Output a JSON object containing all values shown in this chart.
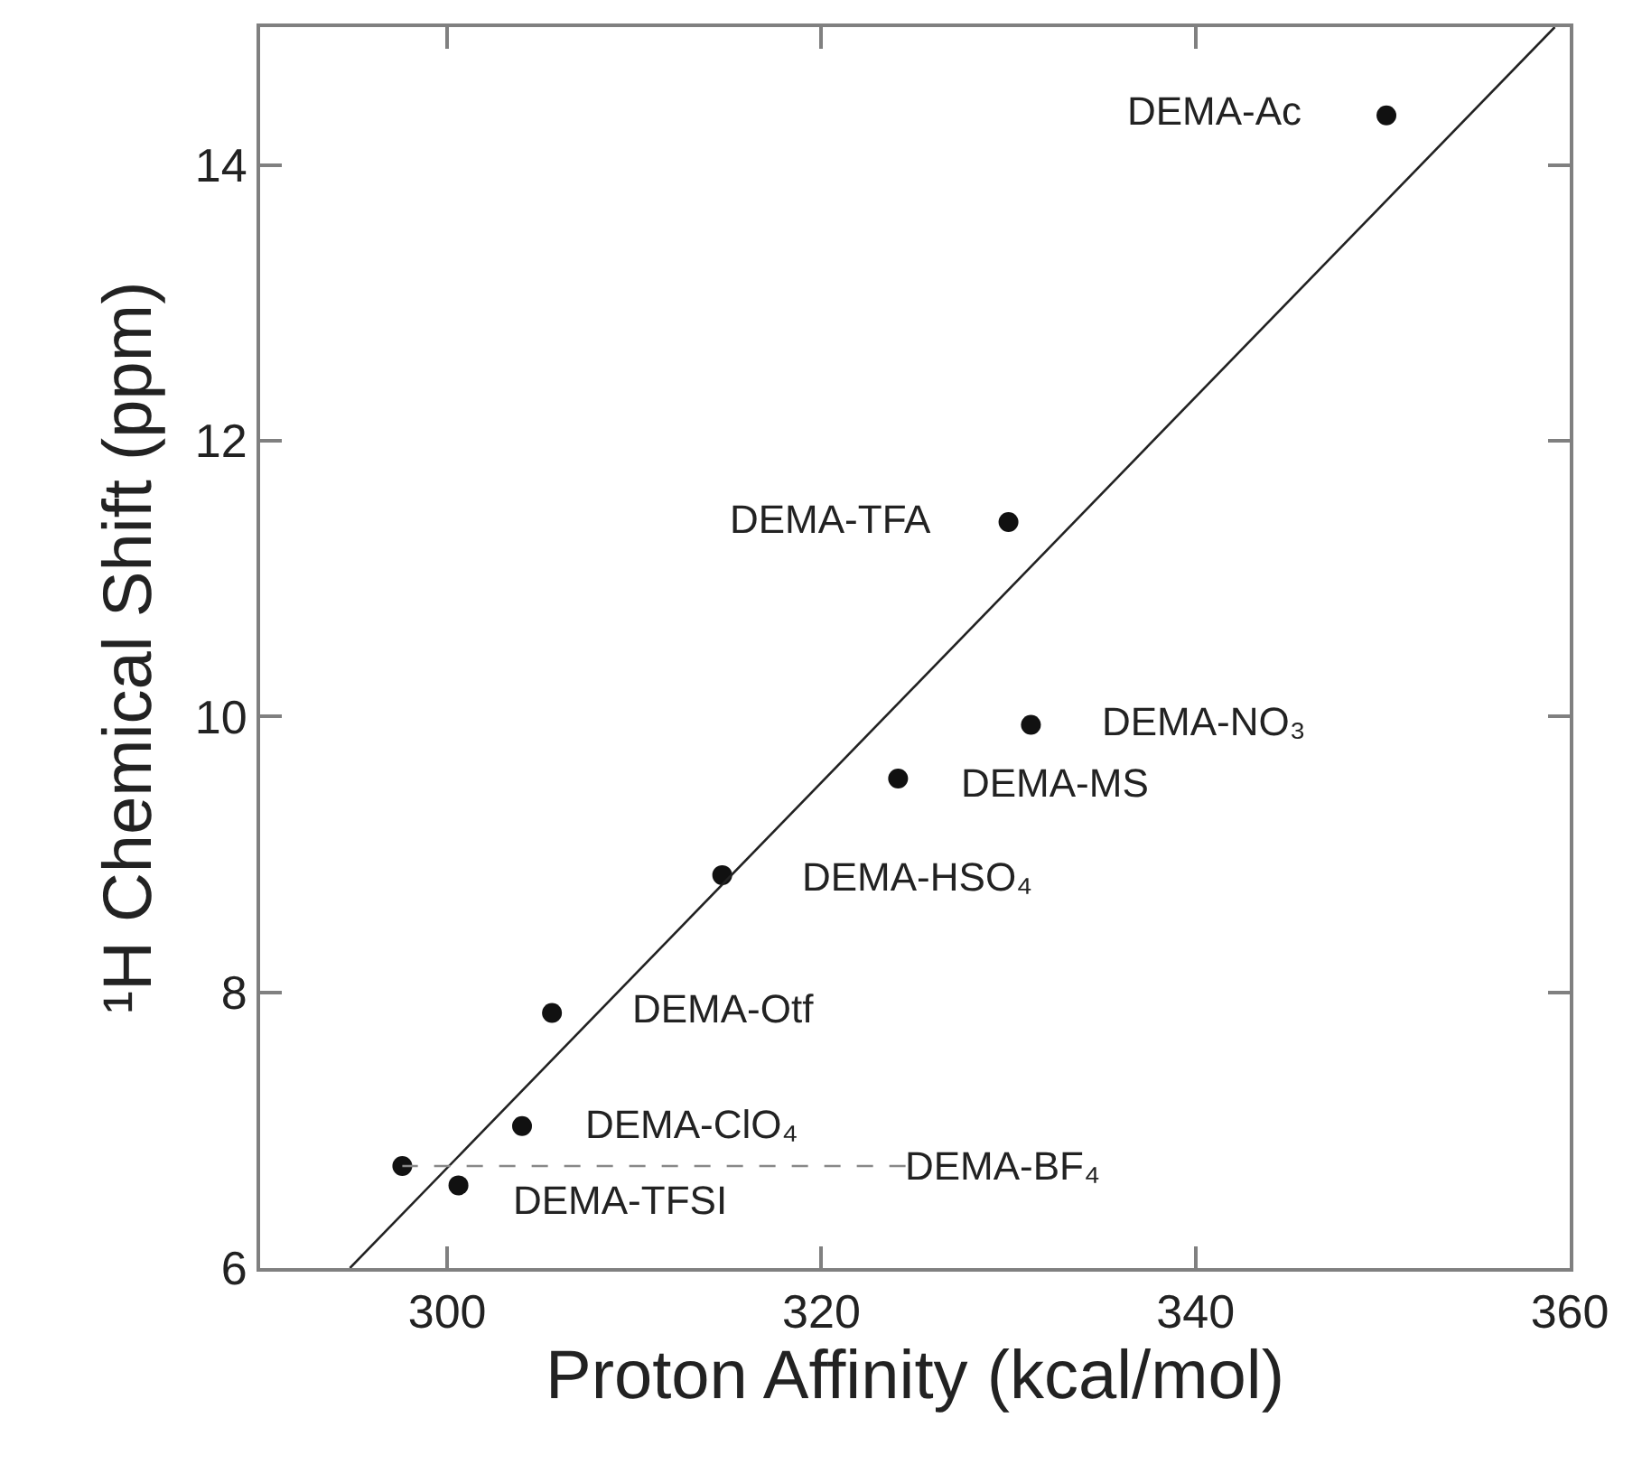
{
  "chart_data": {
    "type": "scatter",
    "xlabel": "Proton Affinity (kcal/mol)",
    "ylabel": "¹H Chemical Shift (ppm)",
    "xlim": [
      290,
      360
    ],
    "xticks": [
      300,
      320,
      340,
      360
    ],
    "ylim": [
      6,
      15
    ],
    "yticks": [
      6,
      8,
      10,
      12,
      14
    ],
    "series": [
      {
        "color": "#111111",
        "marker": "circle",
        "x": [
          350.2,
          330.0,
          331.2,
          324.1,
          314.7,
          305.6,
          304.0,
          297.6,
          300.6
        ],
        "values": [
          14.36,
          11.41,
          9.94,
          9.55,
          8.85,
          7.85,
          7.03,
          6.74,
          6.6
        ]
      },
      {
        "type": "line",
        "color": "#222222",
        "marker": "none",
        "line_style": "solid",
        "x": [
          294.8,
          359.2
        ],
        "values": [
          6,
          15
        ]
      },
      {
        "type": "line",
        "color": "#888888",
        "marker": "none",
        "line_style": "dashed",
        "x": [
          324.5,
          297.6
        ],
        "values": [
          6.74,
          6.74
        ]
      }
    ],
    "annotations": [
      {
        "text": "DEMA-Ac",
        "x": 350.2,
        "y": 14.36
      },
      {
        "text": "DEMA-TFA",
        "x": 330.0,
        "y": 11.41
      },
      {
        "text": "DEMA-NO₃",
        "x": 331.2,
        "y": 9.94
      },
      {
        "text": "DEMA-MS",
        "x": 324.1,
        "y": 9.55
      },
      {
        "text": "DEMA-HSO₄",
        "x": 314.7,
        "y": 8.85
      },
      {
        "text": "DEMA-Otf",
        "x": 305.6,
        "y": 7.85
      },
      {
        "text": "DEMA-ClO₄",
        "x": 304.0,
        "y": 7.03
      },
      {
        "text": "DEMA-BF₄",
        "x": 324.5,
        "y": 6.74
      },
      {
        "text": "DEMA-TFSI",
        "x": 300.6,
        "y": 6.6
      }
    ]
  }
}
